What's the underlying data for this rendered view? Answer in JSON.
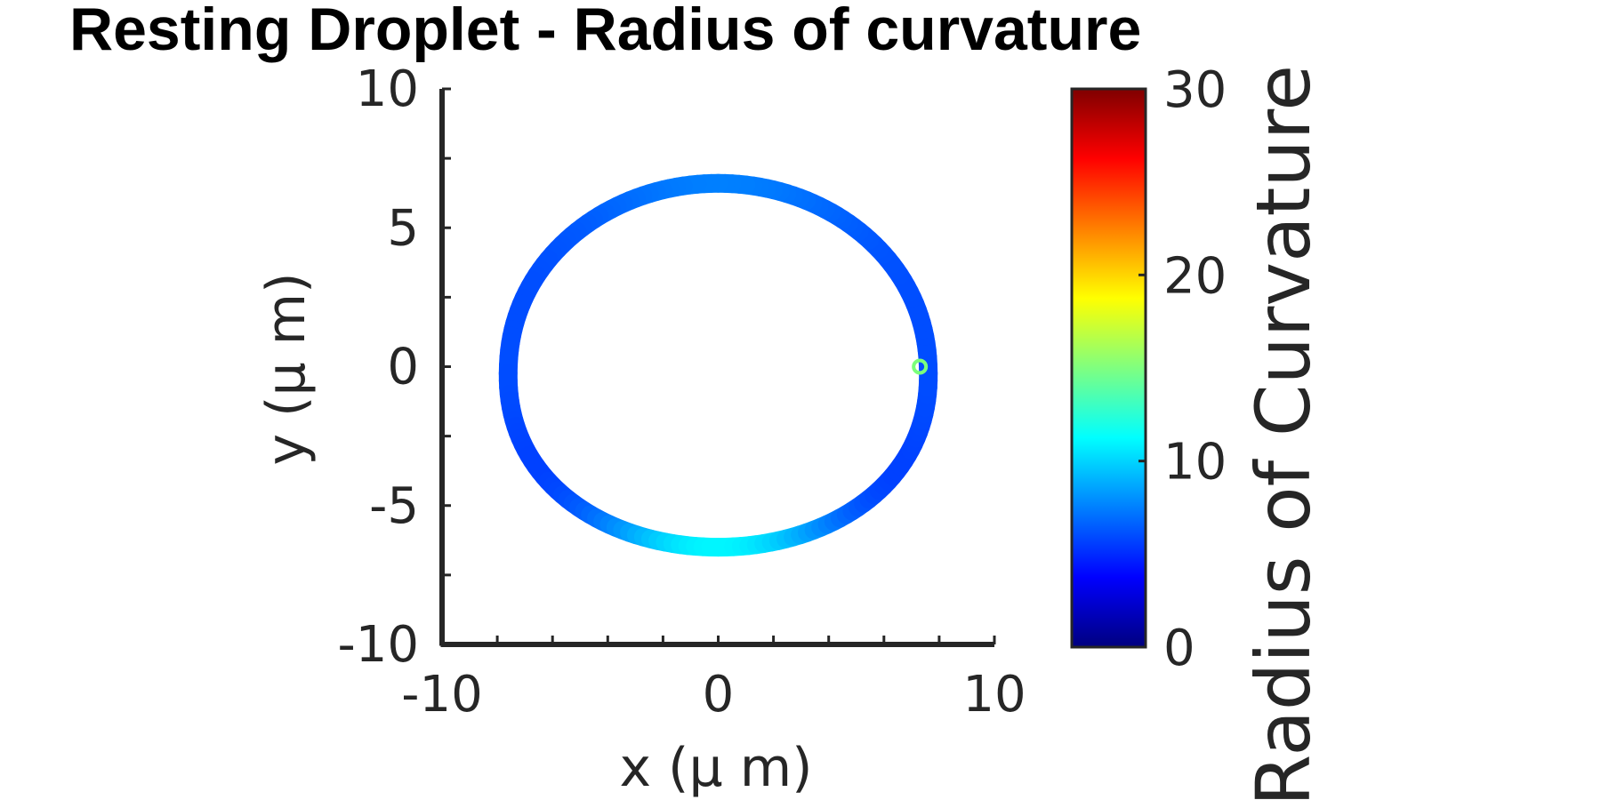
{
  "chart_data": {
    "type": "line",
    "title": "Resting Droplet - Radius of curvature",
    "xlabel": "x (μ m)",
    "ylabel": "y (μ m)",
    "xlim": [
      -10,
      10
    ],
    "ylim": [
      -10,
      10
    ],
    "xticks": [
      "-10",
      "0",
      "10"
    ],
    "yticks": [
      "-10",
      "-5",
      "0",
      "5",
      "10"
    ],
    "grid": false,
    "colormap": "jet",
    "colorbar": {
      "label": "Radius of Curvature",
      "clim": [
        0,
        30
      ],
      "ticks": [
        "0",
        "10",
        "20",
        "30"
      ]
    },
    "droplet_outline": {
      "shape": "closed contour, slightly egg-shaped (wider at bottom)",
      "x_extent": [
        -7.6,
        7.6
      ],
      "y_extent": [
        -6.5,
        6.6
      ],
      "approx_radius_of_curvature": {
        "top": 7.5,
        "sides": 6.0,
        "lower_sides": 5.0,
        "bottom": 11.0
      }
    },
    "marker": {
      "x": 7.3,
      "y": 0.0,
      "style": "open circle",
      "color": "#7bff7b"
    }
  }
}
